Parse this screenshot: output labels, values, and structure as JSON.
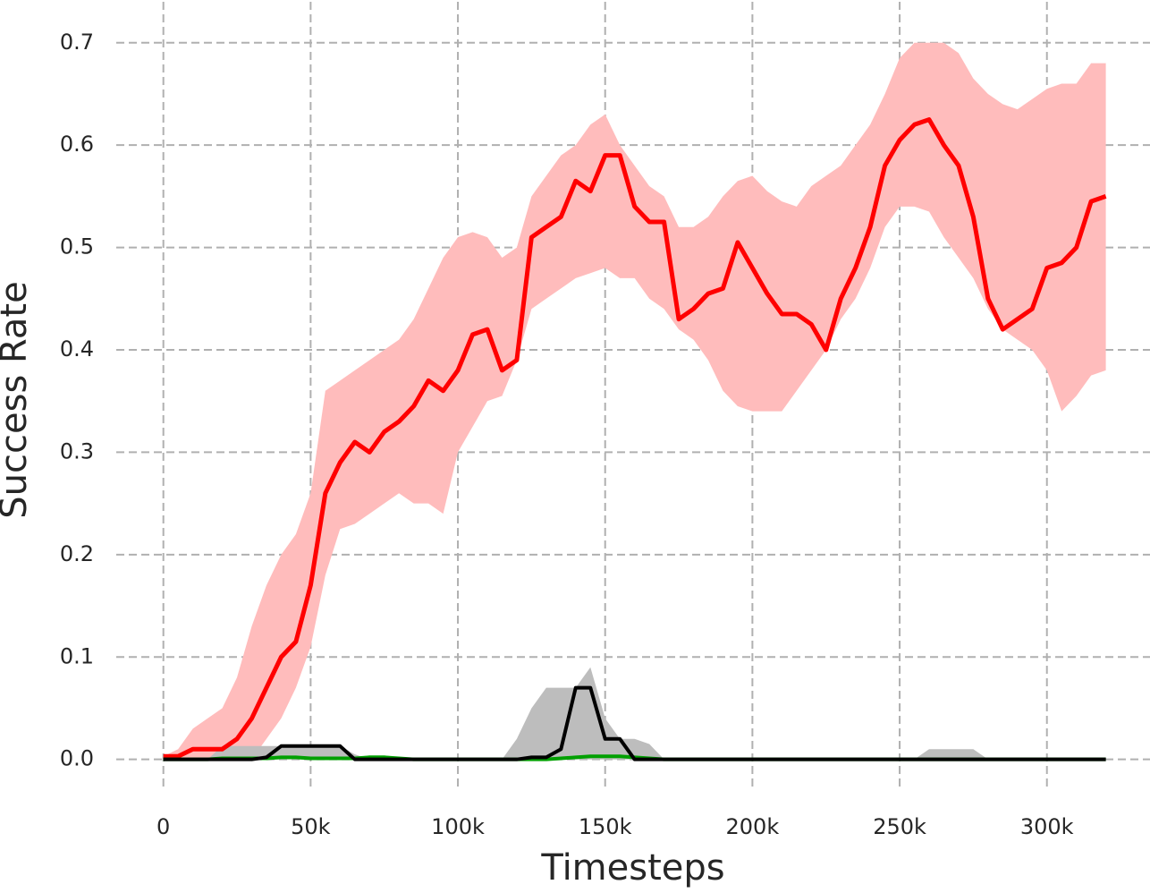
{
  "chart_data": {
    "type": "line",
    "x_label": "Timesteps",
    "y_label": "Success Rate",
    "grid": true,
    "xlim": [
      -16000,
      335000
    ],
    "ylim": [
      -0.03,
      0.74
    ],
    "xticks": [
      0,
      {
        "value": 50000,
        "label": "50k"
      },
      {
        "value": 100000,
        "label": "100k"
      },
      {
        "value": 150000,
        "label": "150k"
      },
      {
        "value": 200000,
        "label": "200k"
      },
      {
        "value": 250000,
        "label": "250k"
      },
      {
        "value": 300000,
        "label": "300k"
      }
    ],
    "yticks": [
      {
        "value": 0,
        "label": "0.0"
      },
      0.1,
      0.2,
      0.3,
      0.4,
      0.5,
      0.6,
      0.7
    ],
    "x": [
      0,
      5000,
      10000,
      15000,
      20000,
      25000,
      30000,
      35000,
      40000,
      45000,
      50000,
      55000,
      60000,
      65000,
      70000,
      75000,
      80000,
      85000,
      90000,
      95000,
      100000,
      105000,
      110000,
      115000,
      120000,
      125000,
      130000,
      135000,
      140000,
      145000,
      150000,
      155000,
      160000,
      165000,
      170000,
      175000,
      180000,
      185000,
      190000,
      195000,
      200000,
      205000,
      210000,
      215000,
      220000,
      225000,
      230000,
      235000,
      240000,
      245000,
      250000,
      255000,
      260000,
      265000,
      270000,
      275000,
      280000,
      285000,
      290000,
      295000,
      300000,
      305000,
      310000,
      315000,
      320000
    ],
    "series": [
      {
        "color": "#ff0000",
        "band_color": "#ffbcbc",
        "values": [
          0.003,
          0.003,
          0.01,
          0.01,
          0.01,
          0.02,
          0.04,
          0.07,
          0.1,
          0.115,
          0.17,
          0.26,
          0.29,
          0.31,
          0.3,
          0.32,
          0.33,
          0.345,
          0.37,
          0.36,
          0.38,
          0.415,
          0.42,
          0.38,
          0.39,
          0.51,
          0.52,
          0.53,
          0.565,
          0.555,
          0.59,
          0.59,
          0.54,
          0.525,
          0.525,
          0.43,
          0.44,
          0.455,
          0.46,
          0.505,
          0.48,
          0.455,
          0.435,
          0.435,
          0.425,
          0.4,
          0.45,
          0.48,
          0.52,
          0.58,
          0.605,
          0.62,
          0.625,
          0.6,
          0.58,
          0.53,
          0.45,
          0.42,
          0.43,
          0.44,
          0.48,
          0.485,
          0.5,
          0.545,
          0.55
        ],
        "upper": [
          0.003,
          0.01,
          0.03,
          0.04,
          0.05,
          0.08,
          0.13,
          0.17,
          0.2,
          0.22,
          0.26,
          0.36,
          0.37,
          0.38,
          0.39,
          0.4,
          0.41,
          0.43,
          0.46,
          0.49,
          0.51,
          0.515,
          0.51,
          0.49,
          0.5,
          0.55,
          0.57,
          0.59,
          0.6,
          0.62,
          0.63,
          0.6,
          0.58,
          0.56,
          0.55,
          0.52,
          0.52,
          0.53,
          0.55,
          0.565,
          0.57,
          0.555,
          0.545,
          0.54,
          0.56,
          0.57,
          0.58,
          0.6,
          0.62,
          0.65,
          0.685,
          0.7,
          0.7,
          0.7,
          0.69,
          0.665,
          0.65,
          0.64,
          0.635,
          0.645,
          0.655,
          0.66,
          0.66,
          0.68,
          0.68
        ],
        "lower": [
          0,
          0,
          0,
          0,
          0,
          0,
          0,
          0.02,
          0.04,
          0.07,
          0.11,
          0.18,
          0.225,
          0.23,
          0.24,
          0.25,
          0.26,
          0.25,
          0.25,
          0.24,
          0.3,
          0.325,
          0.35,
          0.355,
          0.39,
          0.44,
          0.45,
          0.46,
          0.47,
          0.475,
          0.48,
          0.47,
          0.47,
          0.45,
          0.44,
          0.42,
          0.41,
          0.39,
          0.36,
          0.345,
          0.34,
          0.34,
          0.34,
          0.36,
          0.38,
          0.4,
          0.43,
          0.45,
          0.48,
          0.52,
          0.54,
          0.54,
          0.535,
          0.51,
          0.49,
          0.47,
          0.44,
          0.42,
          0.41,
          0.4,
          0.38,
          0.34,
          0.355,
          0.375,
          0.38
        ]
      },
      {
        "color": "#00a000",
        "band_color": "#9fd89f",
        "values": [
          0,
          0,
          0,
          0,
          0.001,
          0.001,
          0.001,
          0.001,
          0.002,
          0.002,
          0.001,
          0.001,
          0.001,
          0.001,
          0.002,
          0.002,
          0.001,
          0,
          0,
          0,
          0,
          0,
          0,
          0,
          0,
          0,
          0,
          0.001,
          0.002,
          0.003,
          0.003,
          0.003,
          0.002,
          0.001,
          0,
          0,
          0,
          0,
          0,
          0,
          0,
          0,
          0,
          0,
          0,
          0,
          0,
          0,
          0,
          0,
          0,
          0,
          0,
          0,
          0,
          0,
          0,
          0,
          0,
          0,
          0,
          0,
          0,
          0,
          0
        ],
        "upper": [
          0,
          0,
          0,
          0,
          0.002,
          0.002,
          0.002,
          0.002,
          0.004,
          0.004,
          0.002,
          0.002,
          0.002,
          0.002,
          0.004,
          0.004,
          0.002,
          0,
          0,
          0,
          0,
          0,
          0,
          0,
          0,
          0,
          0,
          0.002,
          0.004,
          0.006,
          0.006,
          0.006,
          0.004,
          0.002,
          0,
          0,
          0,
          0,
          0,
          0,
          0,
          0,
          0,
          0,
          0,
          0,
          0,
          0,
          0,
          0,
          0,
          0,
          0,
          0,
          0,
          0,
          0,
          0,
          0,
          0,
          0,
          0,
          0,
          0,
          0
        ],
        "lower": [
          0,
          0,
          0,
          0,
          0,
          0,
          0,
          0,
          0,
          0,
          0,
          0,
          0,
          0,
          0,
          0,
          0,
          0,
          0,
          0,
          0,
          0,
          0,
          0,
          0,
          0,
          0,
          0,
          0,
          0,
          0,
          0,
          0,
          0,
          0,
          0,
          0,
          0,
          0,
          0,
          0,
          0,
          0,
          0,
          0,
          0,
          0,
          0,
          0,
          0,
          0,
          0,
          0,
          0,
          0,
          0,
          0,
          0,
          0,
          0,
          0,
          0,
          0,
          0,
          0
        ]
      },
      {
        "color": "#000000",
        "band_color": "#bdbdbd",
        "values": [
          0,
          0,
          0,
          0,
          0,
          0,
          0,
          0.002,
          0.013,
          0.013,
          0.013,
          0.013,
          0.013,
          0,
          0,
          0,
          0,
          0,
          0,
          0,
          0,
          0,
          0,
          0,
          0,
          0.002,
          0.002,
          0.01,
          0.07,
          0.07,
          0.02,
          0.02,
          0,
          0,
          0,
          0,
          0,
          0,
          0,
          0,
          0,
          0,
          0,
          0,
          0,
          0,
          0,
          0,
          0,
          0,
          0,
          0,
          0,
          0,
          0,
          0,
          0,
          0,
          0,
          0,
          0,
          0,
          0,
          0,
          0
        ],
        "upper": [
          0,
          0,
          0,
          0,
          0.013,
          0.013,
          0.013,
          0.013,
          0.013,
          0.013,
          0.013,
          0.013,
          0.013,
          0.005,
          0,
          0,
          0,
          0,
          0,
          0,
          0,
          0,
          0,
          0,
          0.02,
          0.05,
          0.07,
          0.07,
          0.07,
          0.09,
          0.04,
          0.02,
          0.02,
          0.015,
          0,
          0,
          0,
          0,
          0,
          0,
          0,
          0,
          0,
          0,
          0,
          0,
          0,
          0,
          0,
          0,
          0,
          0,
          0.01,
          0.01,
          0.01,
          0.01,
          0,
          0,
          0,
          0,
          0,
          0,
          0,
          0,
          0
        ],
        "lower": [
          0,
          0,
          0,
          0,
          0,
          0,
          0,
          0,
          0,
          0,
          0,
          0,
          0,
          0,
          0,
          0,
          0,
          0,
          0,
          0,
          0,
          0,
          0,
          0,
          0,
          0,
          0,
          0,
          0,
          0,
          0,
          0,
          0,
          0,
          0,
          0,
          0,
          0,
          0,
          0,
          0,
          0,
          0,
          0,
          0,
          0,
          0,
          0,
          0,
          0,
          0,
          0,
          0,
          0,
          0,
          0,
          0,
          0,
          0,
          0,
          0,
          0,
          0,
          0,
          0
        ]
      }
    ]
  }
}
